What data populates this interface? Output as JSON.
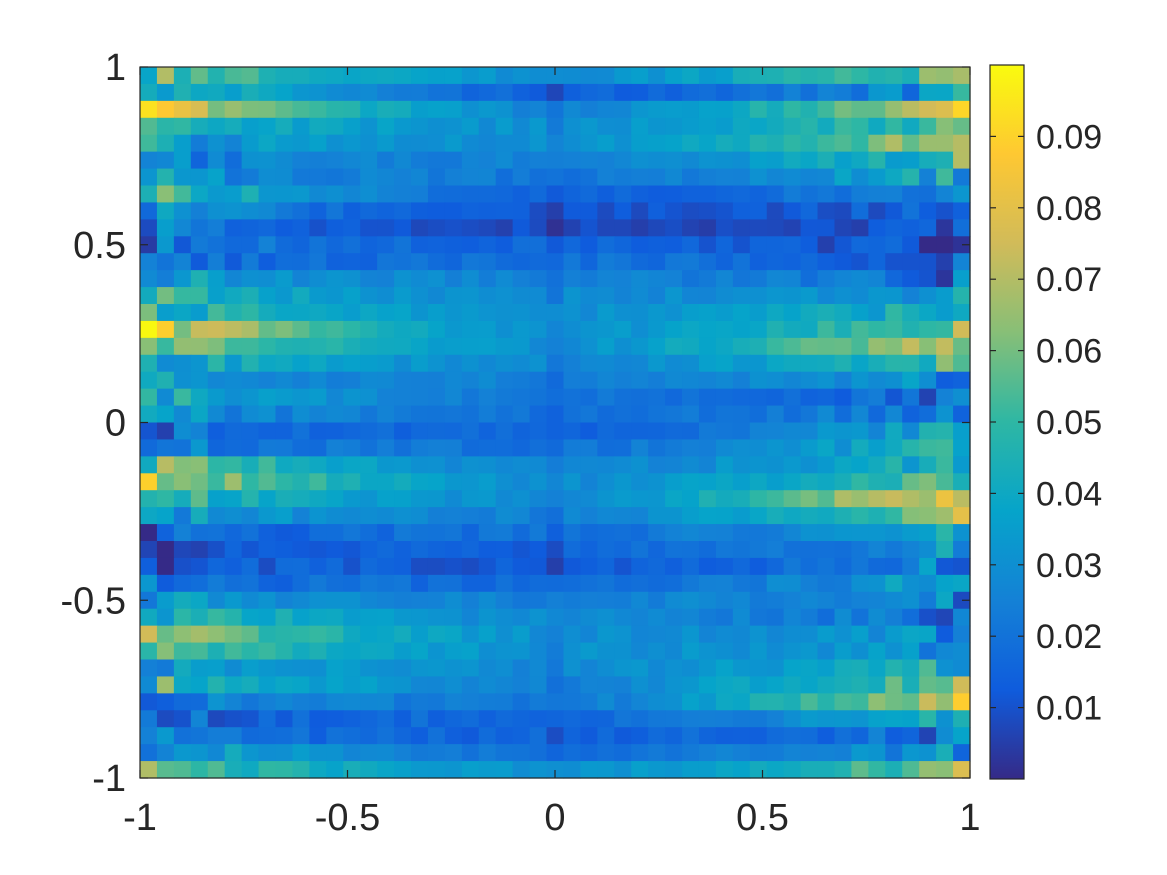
{
  "chart_data": {
    "type": "heatmap",
    "title": "",
    "xlabel": "",
    "ylabel": "",
    "xlim": [
      -1,
      1
    ],
    "ylim": [
      -1,
      1
    ],
    "grid": false,
    "colormap": "parula",
    "x_ticks": [
      -1,
      -0.5,
      0,
      0.5,
      1
    ],
    "x_tick_labels": [
      "-1",
      "-0.5",
      "0",
      "0.5",
      "1"
    ],
    "y_ticks": [
      1,
      0.5,
      0,
      -0.5,
      -1
    ],
    "y_tick_labels": [
      "1",
      "0.5",
      "0",
      "-0.5",
      "-1"
    ],
    "grid_size": {
      "cols": 49,
      "rows": 42
    },
    "colorbar": {
      "placement": "right",
      "range": [
        0,
        0.1
      ],
      "ticks": [
        0.09,
        0.08,
        0.07,
        0.06,
        0.05,
        0.04,
        0.03,
        0.02,
        0.01
      ],
      "tick_labels": [
        "0.09",
        "0.08",
        "0.07",
        "0.06",
        "0.05",
        "0.04",
        "0.03",
        "0.02",
        "0.01"
      ]
    },
    "row_profiles": [
      {
        "y": 0.98,
        "left": 0.06,
        "center": 0.03,
        "right": 0.06
      },
      {
        "y": 0.93,
        "left": 0.05,
        "center": 0.015,
        "right": 0.03
      },
      {
        "y": 0.88,
        "left": 0.08,
        "center": 0.025,
        "right": 0.075
      },
      {
        "y": 0.83,
        "left": 0.045,
        "center": 0.03,
        "right": 0.055
      },
      {
        "y": 0.79,
        "left": 0.035,
        "center": 0.03,
        "right": 0.07
      },
      {
        "y": 0.74,
        "left": 0.025,
        "center": 0.025,
        "right": 0.05
      },
      {
        "y": 0.69,
        "left": 0.03,
        "center": 0.022,
        "right": 0.04
      },
      {
        "y": 0.64,
        "left": 0.05,
        "center": 0.015,
        "right": 0.025
      },
      {
        "y": 0.6,
        "left": 0.03,
        "center": 0.01,
        "right": 0.015
      },
      {
        "y": 0.55,
        "left": 0.02,
        "center": 0.008,
        "right": 0.01
      },
      {
        "y": 0.5,
        "left": 0.025,
        "center": 0.015,
        "right": 0.008
      },
      {
        "y": 0.45,
        "left": 0.015,
        "center": 0.02,
        "right": 0.015
      },
      {
        "y": 0.4,
        "left": 0.035,
        "center": 0.025,
        "right": 0.02
      },
      {
        "y": 0.36,
        "left": 0.045,
        "center": 0.028,
        "right": 0.035
      },
      {
        "y": 0.31,
        "left": 0.05,
        "center": 0.03,
        "right": 0.045
      },
      {
        "y": 0.26,
        "left": 0.08,
        "center": 0.03,
        "right": 0.06
      },
      {
        "y": 0.21,
        "left": 0.065,
        "center": 0.03,
        "right": 0.075
      },
      {
        "y": 0.17,
        "left": 0.045,
        "center": 0.028,
        "right": 0.05
      },
      {
        "y": 0.12,
        "left": 0.03,
        "center": 0.025,
        "right": 0.03
      },
      {
        "y": 0.07,
        "left": 0.04,
        "center": 0.022,
        "right": 0.015
      },
      {
        "y": 0.02,
        "left": 0.03,
        "center": 0.02,
        "right": 0.025
      },
      {
        "y": -0.02,
        "left": 0.02,
        "center": 0.015,
        "right": 0.04
      },
      {
        "y": -0.07,
        "left": 0.025,
        "center": 0.02,
        "right": 0.045
      },
      {
        "y": -0.12,
        "left": 0.06,
        "center": 0.025,
        "right": 0.045
      },
      {
        "y": -0.17,
        "left": 0.07,
        "center": 0.028,
        "right": 0.055
      },
      {
        "y": -0.21,
        "left": 0.05,
        "center": 0.028,
        "right": 0.085
      },
      {
        "y": -0.26,
        "left": 0.035,
        "center": 0.025,
        "right": 0.06
      },
      {
        "y": -0.31,
        "left": 0.015,
        "center": 0.02,
        "right": 0.035
      },
      {
        "y": -0.36,
        "left": 0.01,
        "center": 0.015,
        "right": 0.03
      },
      {
        "y": -0.4,
        "left": 0.015,
        "center": 0.012,
        "right": 0.025
      },
      {
        "y": -0.45,
        "left": 0.02,
        "center": 0.018,
        "right": 0.035
      },
      {
        "y": -0.5,
        "left": 0.03,
        "center": 0.025,
        "right": 0.03
      },
      {
        "y": -0.55,
        "left": 0.05,
        "center": 0.028,
        "right": 0.02
      },
      {
        "y": -0.6,
        "left": 0.065,
        "center": 0.03,
        "right": 0.03
      },
      {
        "y": -0.64,
        "left": 0.055,
        "center": 0.03,
        "right": 0.035
      },
      {
        "y": -0.69,
        "left": 0.04,
        "center": 0.028,
        "right": 0.045
      },
      {
        "y": -0.74,
        "left": 0.05,
        "center": 0.025,
        "right": 0.06
      },
      {
        "y": -0.79,
        "left": 0.03,
        "center": 0.022,
        "right": 0.075
      },
      {
        "y": -0.83,
        "left": 0.015,
        "center": 0.018,
        "right": 0.04
      },
      {
        "y": -0.88,
        "left": 0.02,
        "center": 0.015,
        "right": 0.02
      },
      {
        "y": -0.93,
        "left": 0.04,
        "center": 0.02,
        "right": 0.03
      },
      {
        "y": -0.98,
        "left": 0.055,
        "center": 0.03,
        "right": 0.06
      }
    ]
  }
}
